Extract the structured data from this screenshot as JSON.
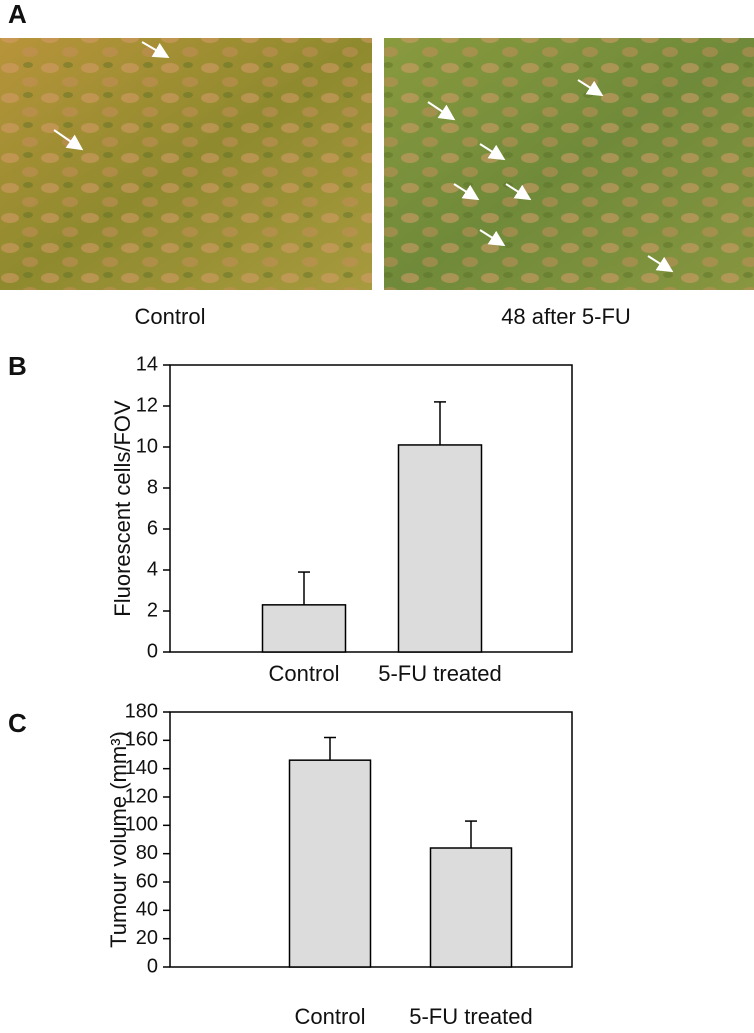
{
  "figure": {
    "panel_a": {
      "label": "A",
      "captions": [
        "Control",
        "48 after 5-FU"
      ]
    }
  },
  "chart_data": [
    {
      "type": "bar",
      "panel_label": "B",
      "y_label": "Fluorescent cells/FOV",
      "categories": [
        "Control",
        "5-FU treated"
      ],
      "values": [
        2.3,
        10.1
      ],
      "errors": [
        1.6,
        2.1
      ],
      "color": "#dcdcdc",
      "ylim": [
        0,
        14
      ],
      "yticks": [
        0,
        2,
        4,
        6,
        8,
        10,
        12,
        14
      ]
    },
    {
      "type": "bar",
      "panel_label": "C",
      "y_label": "Tumour volume (mm³)",
      "categories": [
        "Control",
        "5-FU treated"
      ],
      "values": [
        146,
        84
      ],
      "errors": [
        16,
        19
      ],
      "color": "#dcdcdc",
      "ylim": [
        0,
        180
      ],
      "yticks": [
        0,
        20,
        40,
        60,
        80,
        100,
        120,
        140,
        160,
        180
      ]
    }
  ]
}
